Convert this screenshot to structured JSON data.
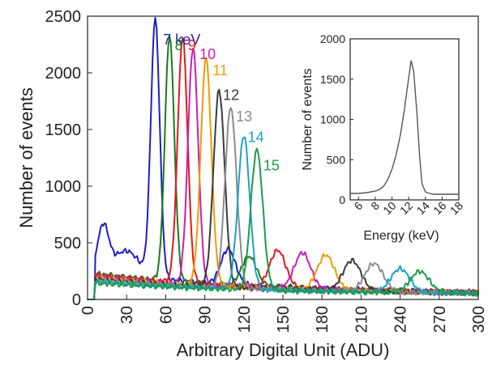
{
  "chart_data": [
    {
      "type": "line",
      "xlabel": "Arbitrary Digital Unit (ADU)",
      "ylabel": "Number of events",
      "xlim": [
        0,
        300
      ],
      "ylim": [
        0,
        2500
      ],
      "xticks": [
        0,
        30,
        60,
        90,
        120,
        150,
        180,
        210,
        240,
        270,
        300
      ],
      "yticks": [
        0,
        500,
        1000,
        1500,
        2000,
        2500
      ],
      "grid": false,
      "series": [
        {
          "name": "7 keV",
          "color": "#1f1fbf",
          "peak_x": 52,
          "peak_y": 2280,
          "sigma": 3.4,
          "escape_x": 108,
          "escape_y": 310,
          "lowbump": 400
        },
        {
          "name": "8",
          "color": "#1a7a1a",
          "peak_x": 63,
          "peak_y": 2170,
          "sigma": 3.6,
          "escape_x": 124,
          "escape_y": 260,
          "lowbump": 140
        },
        {
          "name": "9",
          "color": "#e8161b",
          "peak_x": 73,
          "peak_y": 2170,
          "sigma": 3.8,
          "escape_x": 146,
          "escape_y": 330,
          "lowbump": 90
        },
        {
          "name": "10",
          "color": "#c71fb4",
          "peak_x": 81,
          "peak_y": 2090,
          "sigma": 3.9,
          "escape_x": 165,
          "escape_y": 320,
          "lowbump": 70
        },
        {
          "name": "11",
          "color": "#f39a00",
          "peak_x": 91,
          "peak_y": 2010,
          "sigma": 4.1,
          "escape_x": 183,
          "escape_y": 310,
          "lowbump": 60
        },
        {
          "name": "12",
          "color": "#3a3a3a",
          "peak_x": 101,
          "peak_y": 1740,
          "sigma": 4.3,
          "escape_x": 203,
          "escape_y": 270,
          "lowbump": 60
        },
        {
          "name": "13",
          "color": "#8c8c8c",
          "peak_x": 110,
          "peak_y": 1600,
          "sigma": 4.4,
          "escape_x": 220,
          "escape_y": 250,
          "lowbump": 60
        },
        {
          "name": "14",
          "color": "#1aa3c7",
          "peak_x": 120,
          "peak_y": 1360,
          "sigma": 4.5,
          "escape_x": 240,
          "escape_y": 210,
          "lowbump": 60
        },
        {
          "name": "15",
          "color": "#1a9c4c",
          "peak_x": 130,
          "peak_y": 1240,
          "sigma": 4.6,
          "escape_x": 255,
          "escape_y": 190,
          "lowbump": 60
        }
      ],
      "labels": [
        {
          "text": "7 keV",
          "series": 0,
          "x": 58,
          "y": 2250,
          "anchor": "start"
        },
        {
          "text": "8",
          "series": 1,
          "x": 67,
          "y": 2200,
          "anchor": "start"
        },
        {
          "text": "9",
          "series": 2,
          "x": 77,
          "y": 2200,
          "anchor": "start"
        },
        {
          "text": "10",
          "series": 3,
          "x": 86,
          "y": 2120,
          "anchor": "start"
        },
        {
          "text": "11",
          "series": 4,
          "x": 96,
          "y": 1980,
          "anchor": "start"
        },
        {
          "text": "12",
          "series": 5,
          "x": 104,
          "y": 1760,
          "anchor": "start"
        },
        {
          "text": "13",
          "series": 6,
          "x": 114,
          "y": 1570,
          "anchor": "start"
        },
        {
          "text": "14",
          "series": 7,
          "x": 123,
          "y": 1390,
          "anchor": "start"
        },
        {
          "text": "15",
          "series": 8,
          "x": 135,
          "y": 1140,
          "anchor": "start"
        }
      ]
    },
    {
      "type": "line",
      "xlabel": "Energy (keV)",
      "ylabel": "Number of events",
      "xlim": [
        5,
        18
      ],
      "ylim": [
        0,
        2000
      ],
      "xticks": [
        6,
        8,
        10,
        12,
        14,
        16,
        18
      ],
      "yticks": [
        0,
        500,
        1000,
        1500,
        2000
      ],
      "grid": false,
      "series": [
        {
          "color": "#555555",
          "x": [
            5,
            6,
            7,
            8,
            8.5,
            9,
            9.5,
            10,
            10.5,
            11,
            11.5,
            12,
            12.3,
            12.6,
            13,
            13.3,
            13.6,
            14,
            14.5,
            15,
            16,
            17,
            18
          ],
          "values": [
            80,
            80,
            90,
            110,
            130,
            170,
            250,
            380,
            560,
            800,
            1130,
            1520,
            1730,
            1600,
            1050,
            550,
            200,
            100,
            80,
            70,
            70,
            70,
            70
          ]
        }
      ]
    }
  ]
}
